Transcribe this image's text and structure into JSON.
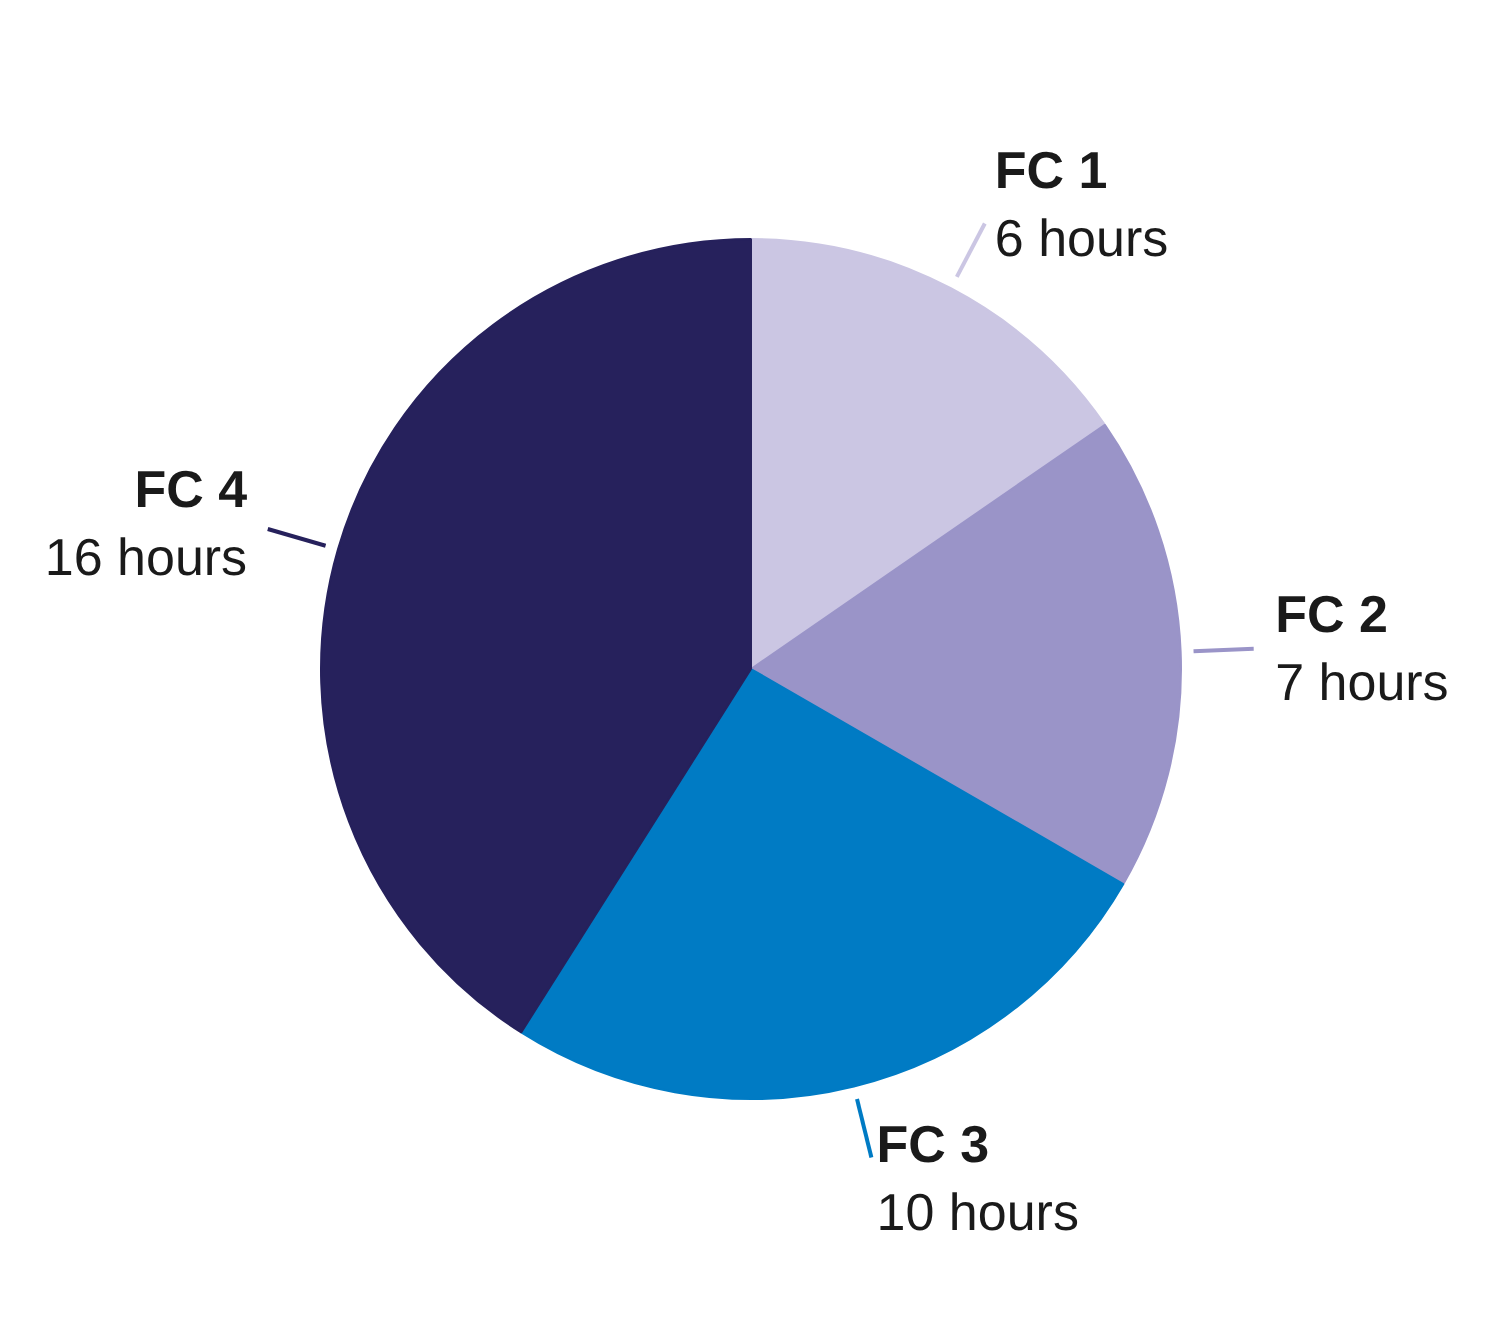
{
  "chart_data": {
    "type": "pie",
    "categories": [
      "FC 1",
      "FC 2",
      "FC 3",
      "FC 4"
    ],
    "values": [
      6,
      7,
      10,
      16
    ],
    "value_labels": [
      "6 hours",
      "7 hours",
      "10 hours",
      "16 hours"
    ],
    "colors": [
      "#cbc6e3",
      "#9a94c8",
      "#007bc4",
      "#26215c"
    ]
  }
}
